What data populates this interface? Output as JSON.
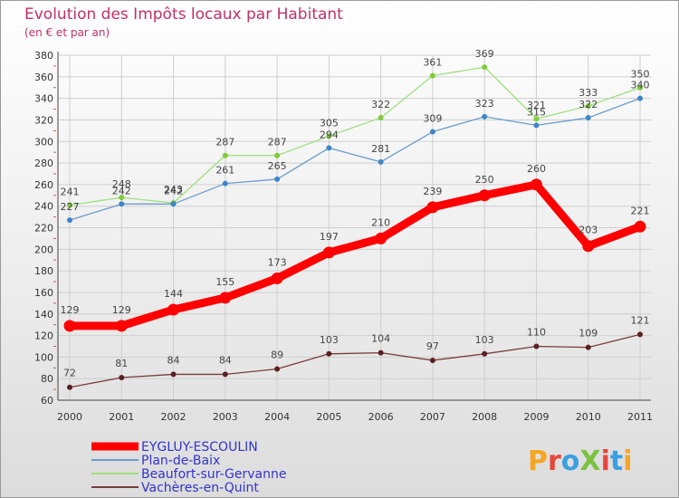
{
  "chart_data": {
    "type": "line",
    "title": "Evolution des Impôts locaux par Habitant",
    "subtitle": "(en € et par an)",
    "categories": [
      "2000",
      "2001",
      "2002",
      "2003",
      "2004",
      "2005",
      "2006",
      "2007",
      "2008",
      "2009",
      "2010",
      "2011"
    ],
    "ylim": [
      60,
      380
    ],
    "yticks": [
      60,
      80,
      100,
      120,
      140,
      160,
      180,
      200,
      220,
      240,
      260,
      280,
      300,
      320,
      340,
      360,
      380
    ],
    "grid": true,
    "legend_position": "bottom-left",
    "series": [
      {
        "name": "EYGLUY-ESCOULIN",
        "color": "#ff0000",
        "values": [
          129,
          129,
          144,
          155,
          173,
          197,
          210,
          239,
          250,
          260,
          203,
          221
        ]
      },
      {
        "name": "Plan-de-Baix",
        "color": "#6b9ccc",
        "point_color": "#3f86c8",
        "values": [
          227,
          242,
          242,
          261,
          265,
          294,
          281,
          309,
          323,
          315,
          322,
          340
        ]
      },
      {
        "name": "Beaufort-sur-Gervanne",
        "color": "#9ee07e",
        "point_color": "#7fcc3a",
        "values": [
          241,
          248,
          243,
          287,
          287,
          305,
          322,
          361,
          369,
          321,
          333,
          350
        ]
      },
      {
        "name": "Vachères-en-Quint",
        "color": "#7a3b3b",
        "point_color": "#5a2020",
        "values": [
          72,
          81,
          84,
          84,
          89,
          103,
          104,
          97,
          103,
          110,
          109,
          121
        ]
      }
    ]
  },
  "brand": {
    "text": "ProXiti",
    "letters": [
      "P",
      "r",
      "o",
      "X",
      "i",
      "t",
      "i"
    ],
    "colors": [
      "#f5a623",
      "#e8463c",
      "#3aa0e0",
      "#7cc242",
      "#e8463c",
      "#3aa0e0",
      "#f5a623"
    ]
  }
}
